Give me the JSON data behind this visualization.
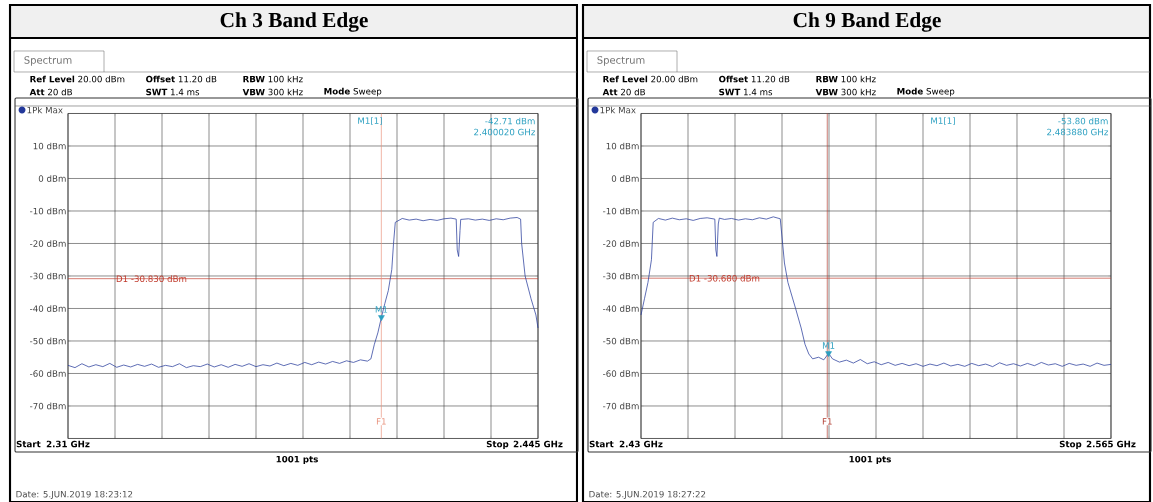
{
  "chart_data": [
    {
      "type": "line",
      "title": "Ch 3 Band Edge",
      "xlim": [
        2.31,
        2.445
      ],
      "ylim": [
        -80,
        20
      ],
      "xticks": [
        {
          "value": 2.31,
          "label": "2.31 GHz"
        },
        {
          "value": 2.3235,
          "label": null
        },
        {
          "value": 2.337,
          "label": null
        },
        {
          "value": 2.3505,
          "label": null
        },
        {
          "value": 2.364,
          "label": null
        },
        {
          "value": 2.3775,
          "label": null
        },
        {
          "value": 2.391,
          "label": null
        },
        {
          "value": 2.4045,
          "label": null
        },
        {
          "value": 2.418,
          "label": null
        },
        {
          "value": 2.4315,
          "label": null
        },
        {
          "value": 2.445,
          "label": "2.445 GHz"
        }
      ],
      "yticks": [
        {
          "value": 10,
          "label": "10 dBm"
        },
        {
          "value": 0,
          "label": "0 dBm"
        },
        {
          "value": -10,
          "label": "-10 dBm"
        },
        {
          "value": -20,
          "label": "-20 dBm"
        },
        {
          "value": -30,
          "label": "-30 dBm"
        },
        {
          "value": -40,
          "label": "-40 dBm"
        },
        {
          "value": -50,
          "label": "-50 dBm"
        },
        {
          "value": -60,
          "label": "-60 dBm"
        },
        {
          "value": -70,
          "label": "-70 dBm"
        }
      ],
      "grid": true,
      "legend": "top left",
      "series": [
        {
          "name": "1Pk Max",
          "color": "#23389a",
          "x": [
            2.31,
            2.312,
            2.314,
            2.316,
            2.318,
            2.32,
            2.322,
            2.324,
            2.326,
            2.328,
            2.33,
            2.332,
            2.334,
            2.336,
            2.338,
            2.34,
            2.342,
            2.344,
            2.346,
            2.348,
            2.35,
            2.352,
            2.354,
            2.356,
            2.358,
            2.36,
            2.362,
            2.364,
            2.366,
            2.368,
            2.37,
            2.372,
            2.374,
            2.376,
            2.378,
            2.38,
            2.382,
            2.384,
            2.386,
            2.388,
            2.39,
            2.392,
            2.394,
            2.396,
            2.397,
            2.398,
            2.399,
            2.40002,
            2.401,
            2.402,
            2.403,
            2.4035,
            2.404,
            2.406,
            2.408,
            2.41,
            2.412,
            2.414,
            2.416,
            2.418,
            2.42,
            2.4215,
            2.4218,
            2.4222,
            2.4226,
            2.4228,
            2.425,
            2.427,
            2.429,
            2.431,
            2.433,
            2.435,
            2.437,
            2.439,
            2.44,
            2.4403,
            2.4413,
            2.443,
            2.4444,
            2.445
          ],
          "values": [
            -57.5,
            -58.2,
            -57.0,
            -58.0,
            -57.3,
            -57.9,
            -56.9,
            -58.1,
            -57.4,
            -58.0,
            -57.2,
            -57.8,
            -57.1,
            -58.1,
            -57.5,
            -57.9,
            -57.0,
            -58.2,
            -57.6,
            -57.9,
            -57.1,
            -58.0,
            -57.3,
            -58.1,
            -57.2,
            -57.8,
            -57.0,
            -57.9,
            -57.3,
            -57.7,
            -56.8,
            -57.6,
            -56.9,
            -57.5,
            -56.6,
            -57.3,
            -56.5,
            -57.1,
            -56.3,
            -56.9,
            -56.1,
            -56.6,
            -55.8,
            -56.2,
            -55.5,
            -51.0,
            -47.5,
            -42.71,
            -38.5,
            -34.5,
            -28.0,
            -20.0,
            -13.5,
            -12.3,
            -12.8,
            -12.5,
            -13.0,
            -12.6,
            -12.9,
            -12.4,
            -12.2,
            -12.5,
            -22.0,
            -24.0,
            -16.0,
            -12.6,
            -12.4,
            -12.8,
            -12.5,
            -12.9,
            -12.4,
            -12.7,
            -12.2,
            -12.0,
            -12.5,
            -20.0,
            -30.0,
            -37.0,
            -42.0,
            -46.0
          ]
        },
        {
          "type": "scatter",
          "name": "M1",
          "color": "#2a9fc0",
          "marker": "triangle",
          "x": [
            2.40002
          ],
          "values": [
            -42.71
          ]
        }
      ],
      "ref_lines": [
        {
          "axis": "y",
          "value": -30.83,
          "label": "D1 -30.830 dBm",
          "color": "#c0392b"
        },
        {
          "axis": "x",
          "value": 2.4,
          "label": "F1",
          "color": "#e8907a"
        }
      ],
      "annotations": [
        "Spectrum",
        "**Ref Level** 20.00 dBm",
        "**Offset** 11.20 dB",
        "**RBW** 100 kHz",
        "**Att** 20 dB",
        "**SWT** 1.4 ms",
        "**VBW** 300 kHz",
        "**Mode** Sweep",
        "M1[1]",
        "-42.71 dBm",
        "2.400020 GHz",
        "1001 pts",
        "Date: 5.JUN.2019 18:23:12",
        "Start",
        "Stop"
      ]
    },
    {
      "type": "line",
      "title": "Ch 9 Band Edge",
      "xlim": [
        2.43,
        2.565
      ],
      "ylim": [
        -80,
        20
      ],
      "xticks": [
        {
          "value": 2.43,
          "label": "2.43 GHz"
        },
        {
          "value": 2.4435,
          "label": null
        },
        {
          "value": 2.457,
          "label": null
        },
        {
          "value": 2.4705,
          "label": null
        },
        {
          "value": 2.484,
          "label": null
        },
        {
          "value": 2.4975,
          "label": null
        },
        {
          "value": 2.511,
          "label": null
        },
        {
          "value": 2.5245,
          "label": null
        },
        {
          "value": 2.538,
          "label": null
        },
        {
          "value": 2.5515,
          "label": null
        },
        {
          "value": 2.565,
          "label": "2.565 GHz"
        }
      ],
      "yticks": [
        {
          "value": 10,
          "label": "10 dBm"
        },
        {
          "value": 0,
          "label": "0 dBm"
        },
        {
          "value": -10,
          "label": "-10 dBm"
        },
        {
          "value": -20,
          "label": "-20 dBm"
        },
        {
          "value": -30,
          "label": "-30 dBm"
        },
        {
          "value": -40,
          "label": "-40 dBm"
        },
        {
          "value": -50,
          "label": "-50 dBm"
        },
        {
          "value": -60,
          "label": "-60 dBm"
        },
        {
          "value": -70,
          "label": "-70 dBm"
        }
      ],
      "grid": true,
      "legend": "top left",
      "series": [
        {
          "name": "1Pk Max",
          "color": "#23389a",
          "x": [
            2.43,
            2.431,
            2.432,
            2.433,
            2.4335,
            2.435,
            2.437,
            2.439,
            2.441,
            2.443,
            2.445,
            2.447,
            2.449,
            2.4512,
            2.4515,
            2.4518,
            2.4522,
            2.4525,
            2.454,
            2.456,
            2.458,
            2.46,
            2.462,
            2.464,
            2.466,
            2.468,
            2.47,
            2.4705,
            2.4712,
            2.4722,
            2.4744,
            2.476,
            2.4771,
            2.4782,
            2.4793,
            2.481,
            2.4825,
            2.48388,
            2.485,
            2.487,
            2.489,
            2.491,
            2.493,
            2.495,
            2.497,
            2.499,
            2.501,
            2.503,
            2.505,
            2.507,
            2.509,
            2.511,
            2.513,
            2.515,
            2.517,
            2.519,
            2.521,
            2.523,
            2.525,
            2.527,
            2.529,
            2.531,
            2.533,
            2.535,
            2.537,
            2.539,
            2.541,
            2.543,
            2.545,
            2.547,
            2.549,
            2.551,
            2.553,
            2.555,
            2.557,
            2.559,
            2.561,
            2.563,
            2.565
          ],
          "values": [
            -42.0,
            -37.0,
            -32.0,
            -25.0,
            -13.5,
            -12.3,
            -12.8,
            -12.2,
            -12.7,
            -12.4,
            -12.9,
            -12.3,
            -12.1,
            -12.5,
            -22.0,
            -24.0,
            -14.0,
            -12.2,
            -12.6,
            -12.3,
            -12.8,
            -12.4,
            -12.7,
            -12.1,
            -12.5,
            -11.8,
            -12.4,
            -18.0,
            -26.0,
            -32.0,
            -40.0,
            -46.0,
            -51.0,
            -54.0,
            -55.5,
            -55.0,
            -55.8,
            -53.8,
            -55.5,
            -56.5,
            -55.9,
            -56.8,
            -55.7,
            -57.0,
            -56.4,
            -57.3,
            -56.6,
            -57.5,
            -56.9,
            -57.6,
            -57.0,
            -57.8,
            -57.1,
            -57.6,
            -56.8,
            -57.7,
            -57.2,
            -57.8,
            -56.9,
            -57.6,
            -57.1,
            -57.9,
            -56.7,
            -57.5,
            -57.0,
            -57.7,
            -56.9,
            -57.6,
            -56.6,
            -57.4,
            -57.0,
            -57.8,
            -56.9,
            -57.5,
            -57.1,
            -57.8,
            -56.8,
            -57.5,
            -57.2
          ]
        },
        {
          "type": "scatter",
          "name": "M1",
          "color": "#2a9fc0",
          "marker": "triangle",
          "x": [
            2.48388
          ],
          "values": [
            -53.8
          ]
        }
      ],
      "ref_lines": [
        {
          "axis": "y",
          "value": -30.68,
          "label": "D1 -30.680 dBm",
          "color": "#c0392b"
        },
        {
          "axis": "x",
          "value": 2.4835,
          "label": "F1",
          "color": "#b03a2e"
        }
      ],
      "annotations": [
        "Spectrum",
        "**Ref Level** 20.00 dBm",
        "**Offset** 11.20 dB",
        "**RBW** 100 kHz",
        "**Att** 20 dB",
        "**SWT** 1.4 ms",
        "**VBW** 300 kHz",
        "**Mode** Sweep",
        "M1[1]",
        "-53.80 dBm",
        "2.483880 GHz",
        "1001 pts",
        "Date: 5.JUN.2019 18:27:22",
        "Start",
        "Stop"
      ]
    }
  ]
}
